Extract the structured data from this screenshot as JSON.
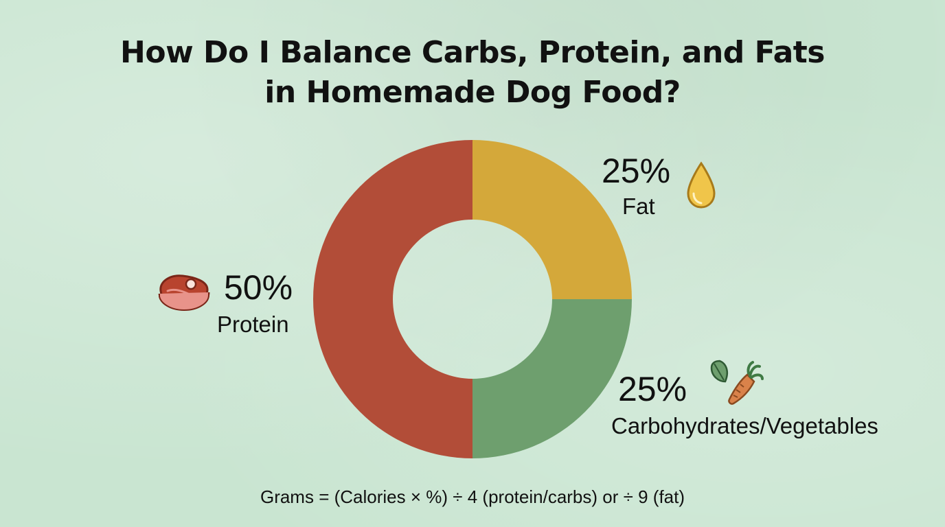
{
  "title_lines": [
    "How Do I Balance Carbs, Protein, and Fats",
    "in Homemade Dog Food?"
  ],
  "chart_data": {
    "type": "pie",
    "donut": true,
    "title": "How Do I Balance Carbs, Protein, and Fats in Homemade Dog Food?",
    "slices": [
      {
        "name": "Fat",
        "value": 25,
        "label": "25%",
        "color": "#d4a83a",
        "icon": "oil-drop-icon"
      },
      {
        "name": "Carbohydrates/Vegetables",
        "value": 25,
        "label": "25%",
        "color": "#6e9f6e",
        "icon": "carrot-leaf-icon"
      },
      {
        "name": "Protein",
        "value": 50,
        "label": "50%",
        "color": "#b24d38",
        "icon": "steak-icon"
      }
    ],
    "start_angle": "12 o'clock",
    "direction": "clockwise"
  },
  "formula": "Grams = (Calories × %) ÷ 4 (protein/carbs) or ÷ 9 (fat)",
  "colors": {
    "background": "#c9e5d1",
    "protein": "#b24d38",
    "fat": "#d4a83a",
    "carbs": "#6e9f6e"
  }
}
